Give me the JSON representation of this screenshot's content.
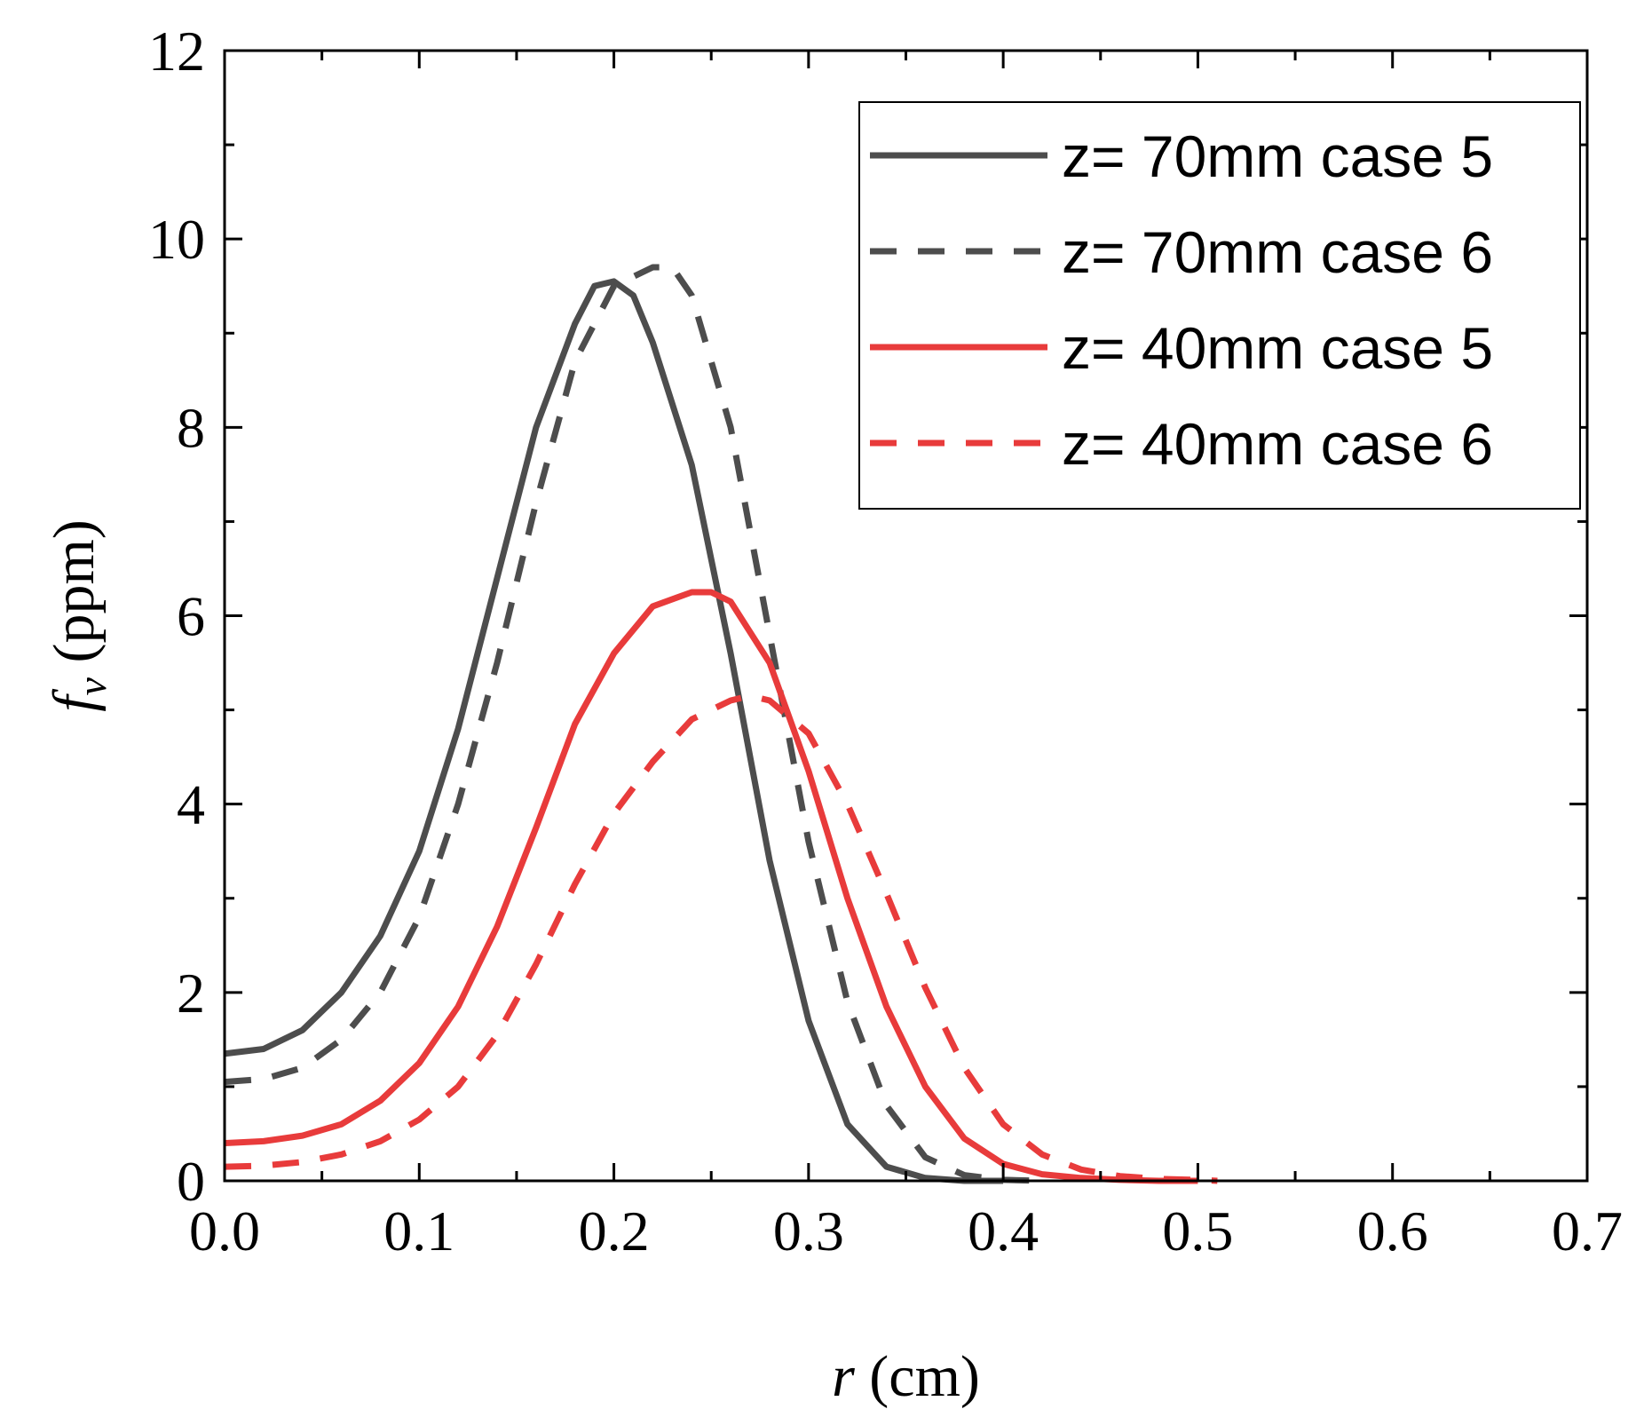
{
  "chart_data": {
    "type": "line",
    "title": "",
    "xlabel": {
      "var": "r",
      "unit": " (cm)"
    },
    "ylabel": {
      "var": "f",
      "sub": "v",
      "unit": " (ppm)"
    },
    "xlim": [
      0.0,
      0.7
    ],
    "ylim": [
      0,
      12
    ],
    "xticks": [
      "0.0",
      "0.1",
      "0.2",
      "0.3",
      "0.4",
      "0.5",
      "0.6",
      "0.7"
    ],
    "yticks": [
      "0",
      "2",
      "4",
      "6",
      "8",
      "10",
      "12"
    ],
    "grid": false,
    "legend_position": "top-right",
    "series": [
      {
        "name": "z= 70mm case 5",
        "color": "#4d4d4d",
        "dash": "solid",
        "x": [
          0.0,
          0.02,
          0.04,
          0.06,
          0.08,
          0.1,
          0.12,
          0.14,
          0.16,
          0.18,
          0.19,
          0.2,
          0.21,
          0.22,
          0.24,
          0.26,
          0.28,
          0.3,
          0.32,
          0.34,
          0.36,
          0.38,
          0.4
        ],
        "y": [
          1.35,
          1.4,
          1.6,
          2.0,
          2.6,
          3.5,
          4.8,
          6.4,
          8.0,
          9.1,
          9.5,
          9.55,
          9.4,
          8.9,
          7.6,
          5.6,
          3.4,
          1.7,
          0.6,
          0.15,
          0.03,
          0.0,
          0.0
        ]
      },
      {
        "name": "z= 70mm case 6",
        "color": "#4d4d4d",
        "dash": "dashed",
        "x": [
          0.0,
          0.02,
          0.04,
          0.06,
          0.08,
          0.1,
          0.12,
          0.14,
          0.16,
          0.18,
          0.2,
          0.22,
          0.23,
          0.24,
          0.26,
          0.28,
          0.3,
          0.32,
          0.34,
          0.36,
          0.38,
          0.4,
          0.42
        ],
        "y": [
          1.05,
          1.08,
          1.2,
          1.5,
          2.0,
          2.8,
          4.0,
          5.5,
          7.2,
          8.7,
          9.5,
          9.7,
          9.7,
          9.4,
          8.0,
          5.8,
          3.6,
          1.9,
          0.8,
          0.25,
          0.06,
          0.01,
          0.0
        ]
      },
      {
        "name": "z= 40mm case 5",
        "color": "#e83b3b",
        "dash": "solid",
        "x": [
          0.0,
          0.02,
          0.04,
          0.06,
          0.08,
          0.1,
          0.12,
          0.14,
          0.16,
          0.18,
          0.2,
          0.22,
          0.24,
          0.25,
          0.26,
          0.28,
          0.3,
          0.32,
          0.34,
          0.36,
          0.38,
          0.4,
          0.42,
          0.44,
          0.46,
          0.48,
          0.5
        ],
        "y": [
          0.4,
          0.42,
          0.48,
          0.6,
          0.85,
          1.25,
          1.85,
          2.7,
          3.75,
          4.85,
          5.6,
          6.1,
          6.25,
          6.25,
          6.15,
          5.5,
          4.35,
          3.0,
          1.85,
          1.0,
          0.45,
          0.18,
          0.07,
          0.03,
          0.01,
          0.0,
          0.0
        ]
      },
      {
        "name": "z= 40mm case 6",
        "color": "#e83b3b",
        "dash": "dashed",
        "x": [
          0.0,
          0.02,
          0.04,
          0.06,
          0.08,
          0.1,
          0.12,
          0.14,
          0.16,
          0.18,
          0.2,
          0.22,
          0.24,
          0.26,
          0.27,
          0.28,
          0.3,
          0.32,
          0.34,
          0.36,
          0.38,
          0.4,
          0.42,
          0.44,
          0.46,
          0.48,
          0.5,
          0.51
        ],
        "y": [
          0.15,
          0.16,
          0.2,
          0.28,
          0.42,
          0.65,
          1.0,
          1.55,
          2.3,
          3.15,
          3.9,
          4.45,
          4.9,
          5.1,
          5.15,
          5.1,
          4.75,
          4.0,
          3.05,
          2.05,
          1.2,
          0.6,
          0.28,
          0.12,
          0.05,
          0.02,
          0.01,
          0.0
        ]
      }
    ]
  }
}
